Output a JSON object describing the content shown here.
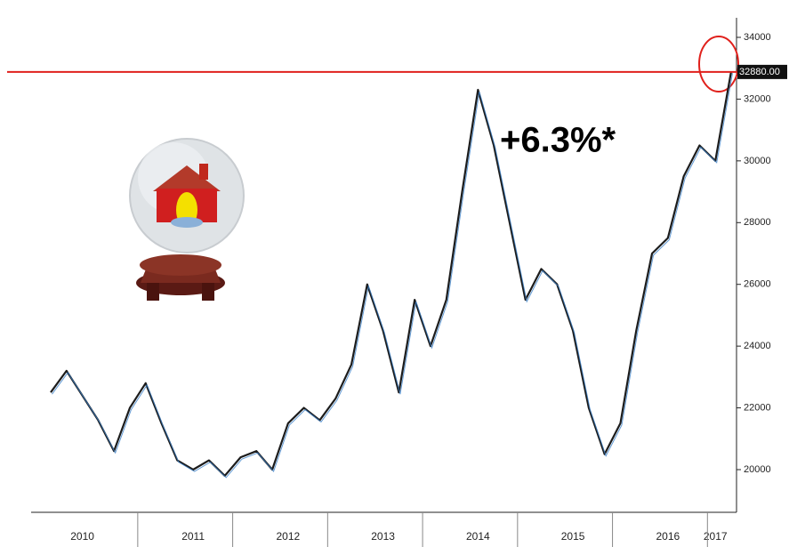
{
  "chart_data": {
    "type": "line",
    "categories": [
      null,
      null,
      "2010",
      null,
      null,
      null,
      null,
      null,
      null,
      "2011",
      null,
      null,
      null,
      null,
      null,
      "2012",
      null,
      null,
      null,
      null,
      null,
      "2013",
      null,
      null,
      null,
      null,
      null,
      "2014",
      null,
      null,
      null,
      null,
      null,
      "2015",
      null,
      null,
      null,
      null,
      null,
      "2016",
      null,
      null,
      "2017",
      null
    ],
    "values": [
      22500,
      23200,
      22400,
      21600,
      20600,
      22000,
      22800,
      21500,
      20300,
      20000,
      20300,
      19800,
      20400,
      20600,
      20000,
      21500,
      22000,
      21600,
      22300,
      23400,
      26000,
      24500,
      22500,
      25500,
      24000,
      25500,
      29000,
      32300,
      30500,
      28000,
      25500,
      26500,
      26000,
      24500,
      22000,
      20500,
      21500,
      24500,
      27000,
      27500,
      29500,
      30500,
      30000,
      32900
    ],
    "color": "#1c1c1c",
    "ylim": [
      19000,
      34500
    ],
    "yticks": [
      20000,
      22000,
      24000,
      26000,
      28000,
      30000,
      32000,
      34000
    ],
    "hline": {
      "value": 32880,
      "label": "32880.00",
      "color": "#e0201b"
    },
    "annotation": "+6.3%*"
  }
}
